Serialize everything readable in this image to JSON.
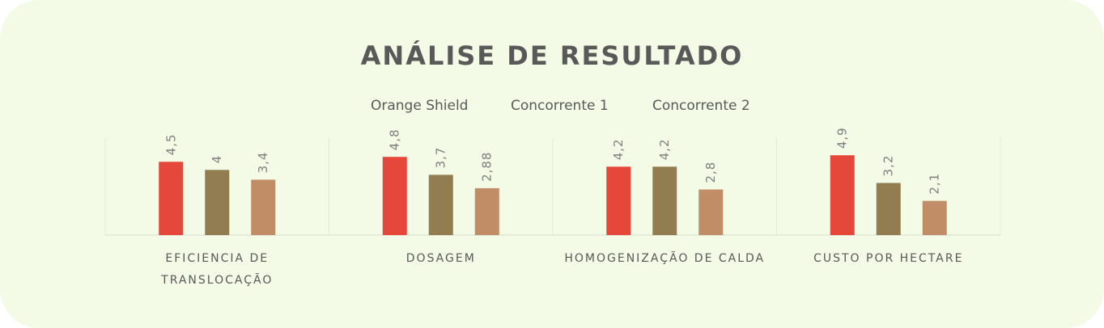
{
  "chart_data": {
    "type": "bar",
    "title": "ANÁLISE DE RESULTADO",
    "categories": [
      "EFICIENCIA DE TRANSLOCAÇÃO",
      "DOSAGEM",
      "HOMOGENIZAÇÃO DE CALDA",
      "CUSTO POR HECTARE"
    ],
    "category_lines": [
      [
        "EFICIENCIA DE",
        "TRANSLOCAÇÃO"
      ],
      [
        "DOSAGEM"
      ],
      [
        "HOMOGENIZAÇÃO DE CALDA"
      ],
      [
        "CUSTO POR HECTARE"
      ]
    ],
    "series": [
      {
        "name": "Orange Shield",
        "color": "#e5473a",
        "values": [
          4.5,
          4.8,
          4.2,
          4.9
        ],
        "labels": [
          "4,5",
          "4,8",
          "4,2",
          "4,9"
        ]
      },
      {
        "name": "Concorrente 1",
        "color": "#927d50",
        "values": [
          4,
          3.7,
          4.2,
          3.2
        ],
        "labels": [
          "4",
          "3,7",
          "4,2",
          "3,2"
        ]
      },
      {
        "name": "Concorrente 2",
        "color": "#c08d66",
        "values": [
          3.4,
          2.88,
          2.8,
          2.1
        ],
        "labels": [
          "3,4",
          "2,88",
          "2,8",
          "2,1"
        ]
      }
    ],
    "ylim": [
      0,
      6
    ],
    "legend_position": "top",
    "grid": false
  }
}
